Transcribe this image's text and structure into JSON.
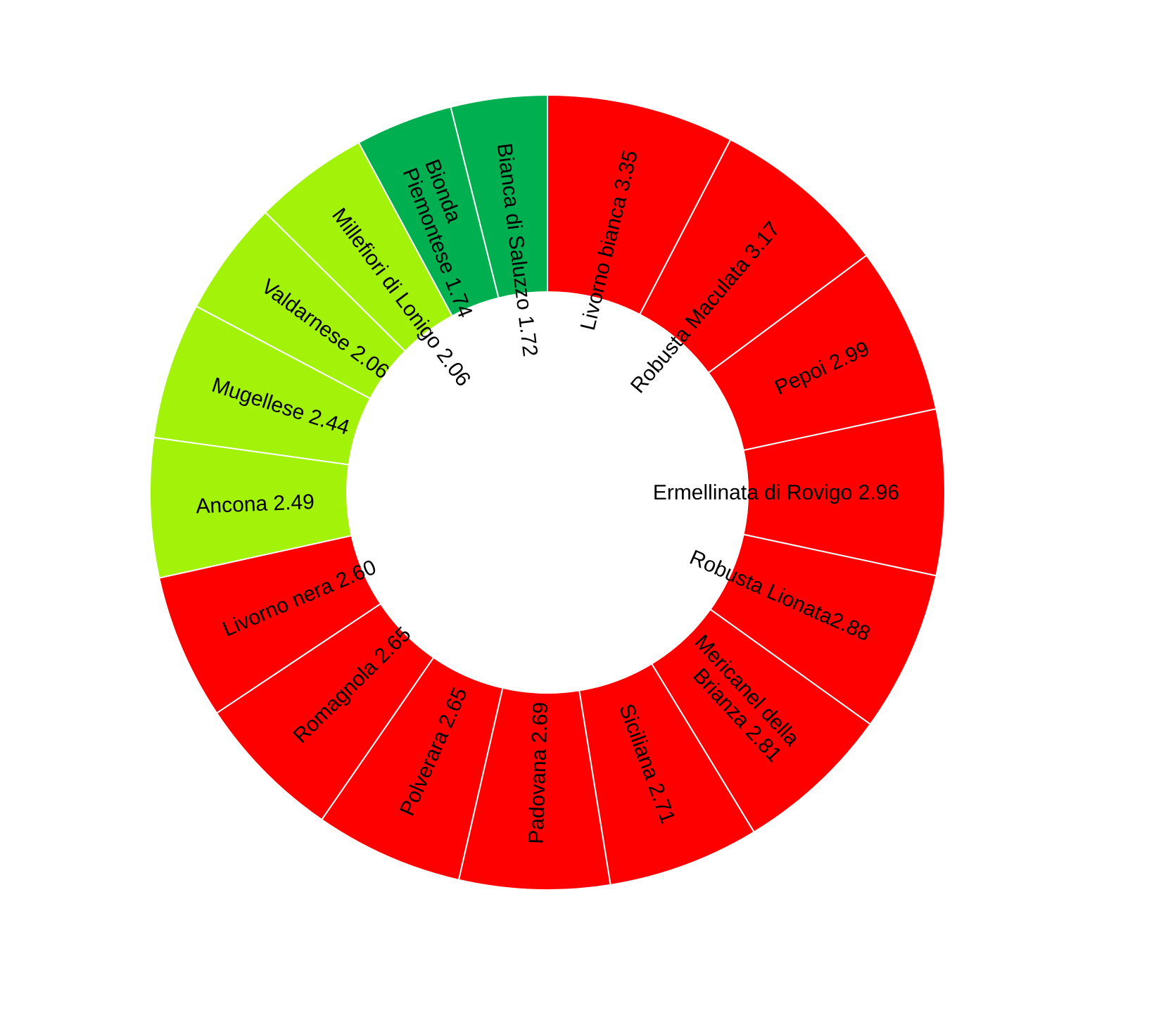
{
  "chart_data": {
    "type": "pie",
    "style": "donut",
    "title": "",
    "legend": "none",
    "colors": {
      "high": "#ff0000",
      "medium": "#a3f20a",
      "low": "#00b050",
      "separator": "#ffffff"
    },
    "slices": [
      {
        "lines": [
          "Livorno bianca 3.35"
        ],
        "value": 3.35,
        "group": "high"
      },
      {
        "lines": [
          "Robusta Maculata 3.17"
        ],
        "value": 3.17,
        "group": "high"
      },
      {
        "lines": [
          "Pepoi 2.99"
        ],
        "value": 2.99,
        "group": "high"
      },
      {
        "lines": [
          "Ermellinata di Rovigo 2.96"
        ],
        "value": 2.96,
        "group": "high"
      },
      {
        "lines": [
          "Robusta Lionata2.88"
        ],
        "value": 2.88,
        "group": "high"
      },
      {
        "lines": [
          "Mericanel della",
          "Brianza 2.81"
        ],
        "value": 2.81,
        "group": "high"
      },
      {
        "lines": [
          "Siciliana 2.71"
        ],
        "value": 2.71,
        "group": "high"
      },
      {
        "lines": [
          "Padovana 2.69"
        ],
        "value": 2.69,
        "group": "high"
      },
      {
        "lines": [
          "Polverara 2.65"
        ],
        "value": 2.65,
        "group": "high"
      },
      {
        "lines": [
          "Romagnola 2.65"
        ],
        "value": 2.65,
        "group": "high"
      },
      {
        "lines": [
          "Livorno nera 2.60"
        ],
        "value": 2.6,
        "group": "high"
      },
      {
        "lines": [
          "Ancona 2.49"
        ],
        "value": 2.49,
        "group": "medium"
      },
      {
        "lines": [
          "Mugellese 2.44"
        ],
        "value": 2.44,
        "group": "medium"
      },
      {
        "lines": [
          "Valdarnese 2.06"
        ],
        "value": 2.06,
        "group": "medium"
      },
      {
        "lines": [
          "Millefiori di Lonigo 2.06"
        ],
        "value": 2.06,
        "group": "medium"
      },
      {
        "lines": [
          "Bionda",
          "Piemontese 1.74"
        ],
        "value": 1.74,
        "group": "low"
      },
      {
        "lines": [
          "Bianca di Saluzzo 1.72"
        ],
        "value": 1.72,
        "group": "low"
      }
    ]
  }
}
